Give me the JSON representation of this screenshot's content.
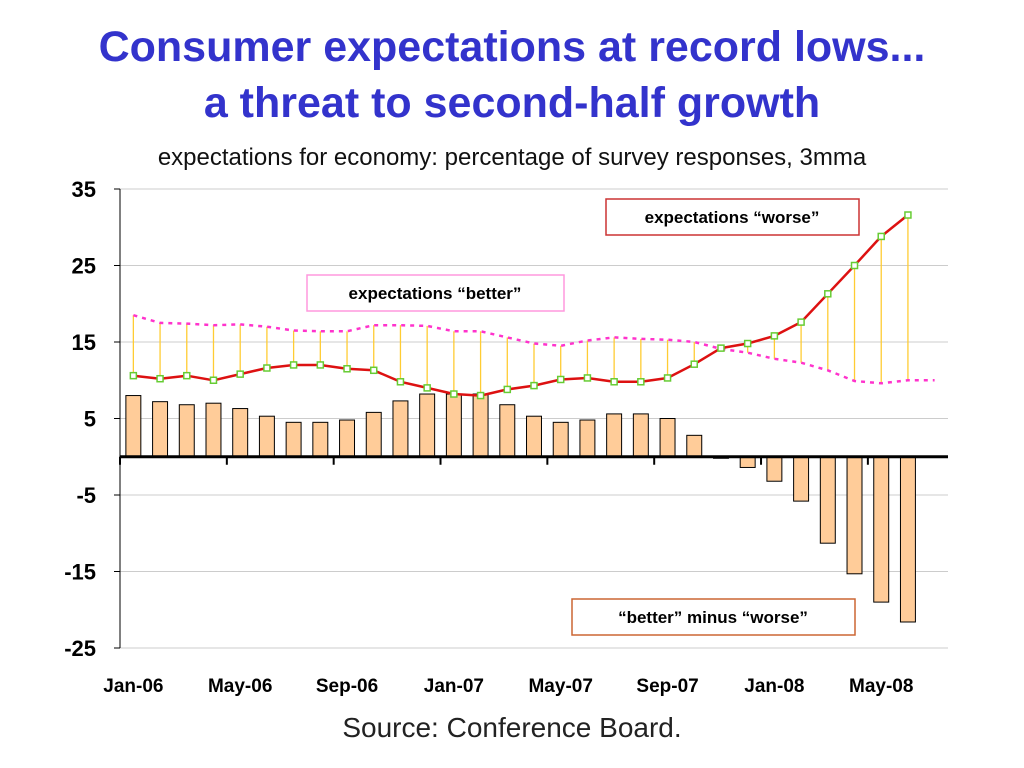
{
  "title_line1": "Consumer expectations at record lows...",
  "title_line2": "a threat to second-half growth",
  "subtitle": "expectations for economy: percentage of survey responses, 3mma",
  "source": "Source: Conference Board.",
  "colors": {
    "title": "#3333cc",
    "better": "#ff33cc",
    "worse": "#dd1111",
    "marker": "#66cc33",
    "range": "#ffcc33",
    "bar_fill": "#ffcc99",
    "bar_stroke": "#000000",
    "anno_border_worse": "#cc3333",
    "anno_border_better": "#ff99dd",
    "anno_border_diff": "#cc6633"
  },
  "chart_data": {
    "type": "bar",
    "title": "Consumer expectations at record lows... a threat to second-half growth",
    "subtitle": "expectations for economy: percentage of survey responses, 3mma",
    "ylim": [
      -25,
      35
    ],
    "yticks": [
      35,
      25,
      15,
      5,
      -5,
      -15,
      -25
    ],
    "x_tick_labels": [
      "Jan-06",
      "May-06",
      "Sep-06",
      "Jan-07",
      "May-07",
      "Sep-07",
      "Jan-08",
      "May-08"
    ],
    "x": [
      "Jan-06",
      "Feb-06",
      "Mar-06",
      "Apr-06",
      "May-06",
      "Jun-06",
      "Jul-06",
      "Aug-06",
      "Sep-06",
      "Oct-06",
      "Nov-06",
      "Dec-06",
      "Jan-07",
      "Feb-07",
      "Mar-07",
      "Apr-07",
      "May-07",
      "Jun-07",
      "Jul-07",
      "Aug-07",
      "Sep-07",
      "Oct-07",
      "Nov-07",
      "Dec-07",
      "Jan-08",
      "Feb-08",
      "Mar-08",
      "Apr-08",
      "May-08",
      "Jun-08",
      "Jul-08"
    ],
    "grid": true,
    "series": [
      {
        "type": "line",
        "values": [
          18.5,
          17.5,
          17.4,
          17.2,
          17.3,
          17.0,
          16.5,
          16.4,
          16.4,
          17.2,
          17.2,
          17.1,
          16.4,
          16.4,
          15.6,
          14.8,
          14.5,
          15.2,
          15.6,
          15.4,
          15.3,
          15.0,
          14.1,
          13.6,
          12.8,
          12.3,
          11.3,
          9.9,
          9.6,
          10.0,
          10.0
        ]
      },
      {
        "type": "line",
        "values": [
          10.6,
          10.2,
          10.6,
          10.0,
          10.8,
          11.6,
          12.0,
          12.0,
          11.5,
          11.3,
          9.8,
          9.0,
          8.2,
          8.0,
          8.8,
          9.3,
          10.1,
          10.3,
          9.8,
          9.8,
          10.3,
          12.1,
          14.2,
          14.8,
          15.8,
          17.6,
          21.3,
          25.0,
          28.8,
          31.6,
          null
        ]
      },
      {
        "type": "bar",
        "values": [
          8.0,
          7.2,
          6.8,
          7.0,
          6.3,
          5.3,
          4.5,
          4.5,
          4.8,
          5.8,
          7.3,
          8.2,
          8.2,
          8.2,
          6.8,
          5.3,
          4.5,
          4.8,
          5.6,
          5.6,
          5.0,
          2.8,
          -0.2,
          -1.4,
          -3.2,
          -5.8,
          -11.3,
          -15.3,
          -19.0,
          -21.6,
          null
        ]
      }
    ],
    "annotations": [
      "expectations “worse”",
      "expectations “better”",
      "“better” minus “worse”"
    ]
  }
}
